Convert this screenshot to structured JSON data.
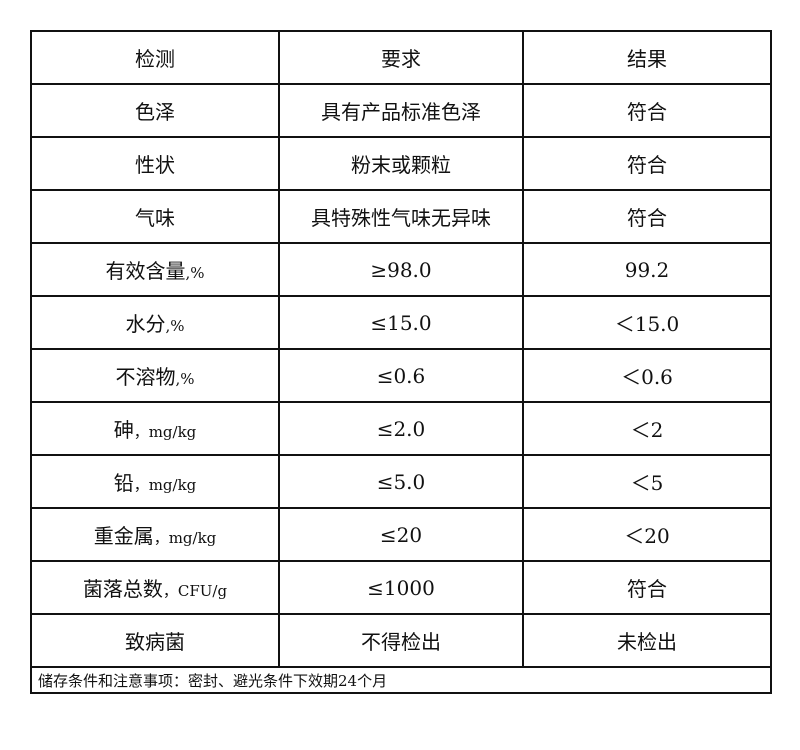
{
  "header": [
    "检测",
    "要求",
    "结果"
  ],
  "rows": [
    {
      "item": "色泽",
      "unit": "",
      "requirement": "具有产品标准色泽",
      "result": "符合"
    },
    {
      "item": "性状",
      "unit": "",
      "requirement": "粉末或颗粒",
      "result": "符合"
    },
    {
      "item": "气味",
      "unit": "",
      "requirement": "具特殊性气味无异味",
      "result": "符合"
    },
    {
      "item": "有效含量",
      "unit": ",%",
      "requirement": "≥98.0",
      "result": "99.2"
    },
    {
      "item": "水分",
      "unit": ",%",
      "requirement": "≤15.0",
      "result": "＜15.0"
    },
    {
      "item": "不溶物",
      "unit": ",%",
      "requirement": "≤0.6",
      "result": "＜0.6"
    },
    {
      "item": "砷",
      "unit": "，mg/kg",
      "requirement": "≤2.0",
      "result": "＜2"
    },
    {
      "item": "铅",
      "unit": "，mg/kg",
      "requirement": "≤5.0",
      "result": "＜5"
    },
    {
      "item": "重金属",
      "unit": "，mg/kg",
      "requirement": "≤20",
      "result": "＜20"
    },
    {
      "item": "菌落总数",
      "unit": "，CFU/g",
      "requirement": "≤1000",
      "result": "符合"
    },
    {
      "item": "致病菌",
      "unit": "",
      "requirement": "不得检出",
      "result": "未检出"
    }
  ],
  "footer": "储存条件和注意事项：密封、避光条件下效期24个月"
}
